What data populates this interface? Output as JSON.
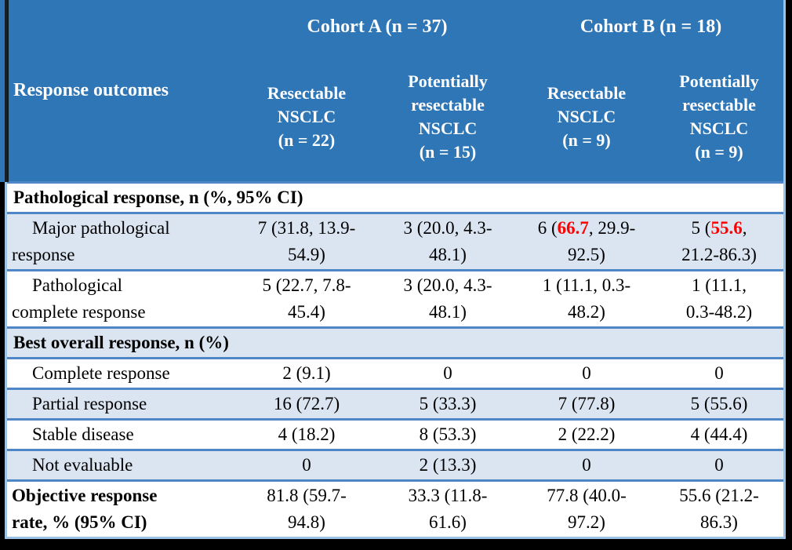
{
  "colors": {
    "header_blue": "#2f76b6",
    "band_blue": "#dbe5f1",
    "divider_blue": "#4f86c6",
    "outer_border_blue": "#9cc3e6",
    "highlight_red": "#ff0000",
    "frame_black": "#000000"
  },
  "table": {
    "corner_label": "Response outcomes",
    "col_groups": [
      {
        "label": "Cohort A (n = 37)",
        "span": 2
      },
      {
        "label": "Cohort B (n = 18)",
        "span": 2
      }
    ],
    "columns": [
      "Resectable\nNSCLC\n(n = 22)",
      "Potentially\nresectable\nNSCLC\n(n = 15)",
      "Resectable\nNSCLC\n(n = 9)",
      "Potentially\nresectable\nNSCLC\n(n = 9)"
    ],
    "rows": [
      {
        "type": "section",
        "label": "Pathological response, n (%, 95% CI)"
      },
      {
        "type": "data",
        "label": "Major pathological\nresponse",
        "cells": [
          {
            "text": "7 (31.8, 13.9-\n54.9)"
          },
          {
            "text": "3 (20.0, 4.3-\n48.1)"
          },
          {
            "text": "6 (66.7, 29.9-\n92.5)",
            "red": "66.7"
          },
          {
            "text": "5 (55.6,\n21.2-86.3)",
            "red": "55.6"
          }
        ]
      },
      {
        "type": "data",
        "label": "Pathological\ncomplete response",
        "cells": [
          {
            "text": "5 (22.7, 7.8-\n45.4)"
          },
          {
            "text": "3 (20.0, 4.3-\n48.1)"
          },
          {
            "text": "1 (11.1, 0.3-\n48.2)"
          },
          {
            "text": "1 (11.1,\n0.3-48.2)"
          }
        ]
      },
      {
        "type": "section",
        "label": "Best overall response, n (%)"
      },
      {
        "type": "data",
        "label": "Complete response",
        "cells": [
          {
            "text": "2 (9.1)"
          },
          {
            "text": "0"
          },
          {
            "text": "0"
          },
          {
            "text": "0"
          }
        ]
      },
      {
        "type": "data",
        "label": "Partial response",
        "cells": [
          {
            "text": "16 (72.7)"
          },
          {
            "text": "5 (33.3)"
          },
          {
            "text": "7 (77.8)"
          },
          {
            "text": "5 (55.6)"
          }
        ]
      },
      {
        "type": "data",
        "label": "Stable disease",
        "cells": [
          {
            "text": "4 (18.2)"
          },
          {
            "text": "8 (53.3)"
          },
          {
            "text": "2 (22.2)"
          },
          {
            "text": "4 (44.4)"
          }
        ]
      },
      {
        "type": "data",
        "label": "Not evaluable",
        "cells": [
          {
            "text": "0"
          },
          {
            "text": "2 (13.3)"
          },
          {
            "text": "0"
          },
          {
            "text": "0"
          }
        ]
      },
      {
        "type": "data",
        "bold": true,
        "indent": false,
        "label": "Objective response\nrate, % (95% CI)",
        "cells": [
          {
            "text": "81.8 (59.7-\n94.8)"
          },
          {
            "text": "33.3 (11.8-\n61.6)"
          },
          {
            "text": "77.8 (40.0-\n97.2)"
          },
          {
            "text": "55.6 (21.2-\n86.3)"
          }
        ]
      }
    ]
  }
}
